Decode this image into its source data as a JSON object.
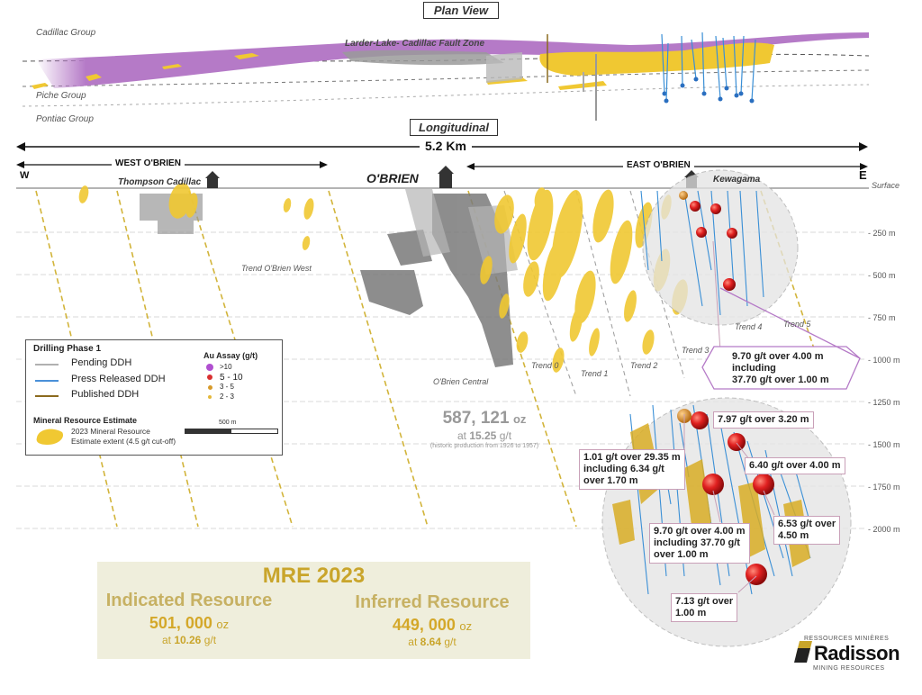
{
  "plan_view": {
    "title": "Plan View",
    "labels": {
      "cadillac": "Cadillac Group",
      "fault": "Larder-Lake- Cadillac Fault Zone",
      "piche": "Piche Group",
      "pontiac": "Pontiac Group"
    }
  },
  "longitudinal": {
    "title": "Longitudinal",
    "distance": "5.2 Km",
    "west_label": "WEST O'BRIEN",
    "east_label": "EAST O'BRIEN",
    "w": "W",
    "e": "E",
    "surface": "Surface",
    "site_thompson": "Thompson Cadillac",
    "site_obrien": "O'BRIEN",
    "site_kewagama": "Kewagama",
    "trends": {
      "obrien_west": "Trend O'Brien West",
      "trend0": "Trend 0",
      "trend1": "Trend 1",
      "trend2": "Trend 2",
      "trend3": "Trend 3",
      "trend4": "Trend 4",
      "trend5": "Trend 5",
      "obrien_central": "O'Brien Central"
    },
    "depths": [
      "- 250 m",
      "- 500 m",
      "- 750 m",
      "- 1000 m",
      "- 1250 m",
      "- 1500 m",
      "- 1750 m",
      "- 2000 m"
    ]
  },
  "historic": {
    "oz": "587, 121",
    "oz_unit": "oz",
    "grade_prefix": "at",
    "grade": "15.25",
    "grade_unit": "g/t",
    "note": "(historic production from 1926 to 1957)"
  },
  "legend": {
    "drilling_title": "Drilling Phase 1",
    "pending": "Pending DDH",
    "press": "Press Released DDH",
    "published": "Published DDH",
    "assay_title": "Au Assay (g/t)",
    "assay": [
      ">10",
      "5 - 10",
      "3 - 5",
      "2 - 3"
    ],
    "mre_title": "Mineral Resource Estimate",
    "mre_line1": "2023 Mineral Resource",
    "mre_line2": "Estimate extent (4.5  g/t cut-off)",
    "scale": "500 m",
    "colors": {
      "pending": "#b0b0b0",
      "press": "#4a90d9",
      "published": "#8b6a1e",
      "mineral": "#f0c832"
    }
  },
  "callouts": {
    "upper_line1": "9.70 g/t over 4.00 m",
    "upper_line2": "including",
    "upper_line3": "37.70 g/t over 1.00 m",
    "c1": "7.97 g/t over 3.20 m",
    "c2_line1": "1.01 g/t over 29.35 m",
    "c2_line2": "including 6.34 g/t",
    "c2_line3": "over 1.70 m",
    "c3": "6.40 g/t over 4.00 m",
    "c4_line1": "9.70 g/t over 4.00 m",
    "c4_line2": "including 37.70 g/t",
    "c4_line3": "over 1.00 m",
    "c5_line1": "6.53 g/t over",
    "c5_line2": "4.50 m",
    "c6_line1": "7.13 g/t over",
    "c6_line2": "1.00 m"
  },
  "mre": {
    "title": "MRE 2023",
    "indicated_label": "Indicated Resource",
    "indicated_oz": "501, 000",
    "indicated_grade": "10.26",
    "inferred_label": "Inferred  Resource",
    "inferred_oz": "449, 000",
    "inferred_grade": "8.64",
    "oz_unit": "oz",
    "grade_prefix": "at",
    "grade_unit": "g/t"
  },
  "logo": {
    "top": "RESSOURCES MINIÈRES",
    "name": "Radisson",
    "bottom": "MINING RESOURCES"
  }
}
